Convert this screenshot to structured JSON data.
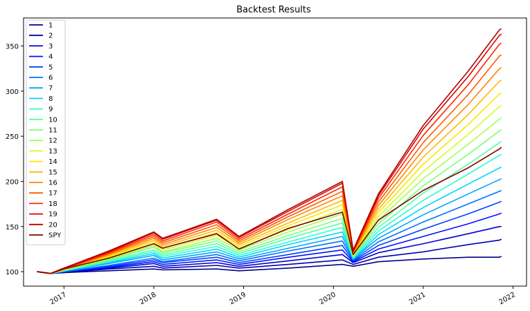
{
  "chart_data": {
    "type": "line",
    "title": "Backtest Results",
    "xlabel": "",
    "ylabel": "",
    "xlim": [
      2016.55,
      2022.15
    ],
    "ylim": [
      84,
      381
    ],
    "x_ticks": [
      {
        "value": 2017,
        "label": "2017"
      },
      {
        "value": 2018,
        "label": "2018"
      },
      {
        "value": 2019,
        "label": "2019"
      },
      {
        "value": 2020,
        "label": "2020"
      },
      {
        "value": 2021,
        "label": "2021"
      },
      {
        "value": 2022,
        "label": "2022"
      }
    ],
    "y_ticks": [
      100,
      150,
      200,
      250,
      300,
      350
    ],
    "grid": false,
    "legend_position": "top-left",
    "x": [
      2016.7,
      2016.85,
      2017.0,
      2017.5,
      2018.0,
      2018.1,
      2018.7,
      2018.95,
      2019.5,
      2020.1,
      2020.22,
      2020.5,
      2021.0,
      2021.5,
      2021.85,
      2021.87
    ],
    "series": [
      {
        "name": "1",
        "color": "#00008b",
        "values": [
          100,
          98,
          99,
          101,
          103,
          102,
          103,
          101,
          104,
          108,
          106,
          111,
          114,
          116,
          116,
          117
        ]
      },
      {
        "name": "2",
        "color": "#0000ad",
        "values": [
          100,
          98,
          99,
          103,
          106,
          104,
          107,
          104,
          108,
          113,
          108,
          116,
          122,
          130,
          135,
          136
        ]
      },
      {
        "name": "3",
        "color": "#0000d6",
        "values": [
          100,
          98,
          100,
          104,
          109,
          106,
          110,
          106,
          112,
          119,
          110,
          121,
          131,
          142,
          150,
          150
        ]
      },
      {
        "name": "4",
        "color": "#0010ff",
        "values": [
          100,
          98,
          100,
          105,
          111,
          108,
          113,
          108,
          116,
          124,
          111,
          125,
          139,
          153,
          164,
          165
        ]
      },
      {
        "name": "5",
        "color": "#0040ff",
        "values": [
          100,
          98,
          100,
          106,
          113,
          110,
          116,
          110,
          119,
          129,
          112,
          129,
          147,
          164,
          177,
          178
        ]
      },
      {
        "name": "6",
        "color": "#0070ff",
        "values": [
          100,
          98,
          100,
          107,
          115,
          111,
          119,
          112,
          123,
          134,
          113,
          133,
          155,
          175,
          189,
          190
        ]
      },
      {
        "name": "7",
        "color": "#00a4ff",
        "values": [
          100,
          98,
          101,
          109,
          118,
          113,
          122,
          114,
          126,
          139,
          114,
          137,
          163,
          186,
          202,
          203
        ]
      },
      {
        "name": "8",
        "color": "#00d4ff",
        "values": [
          100,
          98,
          101,
          110,
          120,
          115,
          125,
          116,
          130,
          144,
          114,
          141,
          171,
          197,
          215,
          216
        ]
      },
      {
        "name": "9",
        "color": "#29ffce",
        "values": [
          100,
          98,
          101,
          111,
          122,
          117,
          128,
          118,
          133,
          149,
          115,
          145,
          179,
          208,
          229,
          230
        ]
      },
      {
        "name": "10",
        "color": "#53ffa4",
        "values": [
          100,
          98,
          101,
          112,
          124,
          119,
          131,
          120,
          137,
          154,
          116,
          149,
          187,
          219,
          243,
          244
        ]
      },
      {
        "name": "11",
        "color": "#7dff7a",
        "values": [
          100,
          98,
          102,
          113,
          127,
          121,
          134,
          122,
          140,
          159,
          117,
          153,
          195,
          230,
          256,
          257
        ]
      },
      {
        "name": "12",
        "color": "#a4ff53",
        "values": [
          100,
          98,
          102,
          114,
          129,
          122,
          137,
          124,
          144,
          164,
          117,
          157,
          203,
          241,
          269,
          270
        ]
      },
      {
        "name": "13",
        "color": "#ceff29",
        "values": [
          100,
          98,
          102,
          116,
          131,
          124,
          140,
          126,
          147,
          169,
          118,
          161,
          211,
          252,
          283,
          284
        ]
      },
      {
        "name": "14",
        "color": "#ffe600",
        "values": [
          100,
          98,
          102,
          117,
          133,
          126,
          143,
          128,
          151,
          174,
          119,
          165,
          219,
          263,
          297,
          298
        ]
      },
      {
        "name": "15",
        "color": "#ffb900",
        "values": [
          100,
          98,
          103,
          118,
          135,
          128,
          146,
          130,
          154,
          179,
          120,
          169,
          227,
          274,
          311,
          312
        ]
      },
      {
        "name": "16",
        "color": "#ff8600",
        "values": [
          100,
          98,
          103,
          119,
          137,
          130,
          149,
          132,
          158,
          184,
          121,
          173,
          235,
          285,
          325,
          326
        ]
      },
      {
        "name": "17",
        "color": "#ff5900",
        "values": [
          100,
          98,
          103,
          120,
          139,
          132,
          152,
          134,
          161,
          189,
          122,
          177,
          243,
          296,
          339,
          340
        ]
      },
      {
        "name": "18",
        "color": "#ff2500",
        "values": [
          100,
          98,
          103,
          121,
          141,
          134,
          155,
          136,
          164,
          194,
          122,
          181,
          251,
          307,
          352,
          353
        ]
      },
      {
        "name": "19",
        "color": "#da0000",
        "values": [
          100,
          98,
          104,
          122,
          143,
          136,
          157,
          138,
          167,
          198,
          123,
          184,
          258,
          316,
          362,
          363
        ]
      },
      {
        "name": "20",
        "color": "#b20000",
        "values": [
          100,
          98,
          104,
          123,
          144,
          137,
          158,
          139,
          169,
          200,
          124,
          186,
          262,
          322,
          368,
          369
        ]
      },
      {
        "name": "SPY",
        "color": "#800000",
        "values": [
          100,
          98,
          103,
          115,
          131,
          126,
          142,
          125,
          148,
          166,
          119,
          157,
          190,
          215,
          236,
          238
        ]
      }
    ]
  }
}
